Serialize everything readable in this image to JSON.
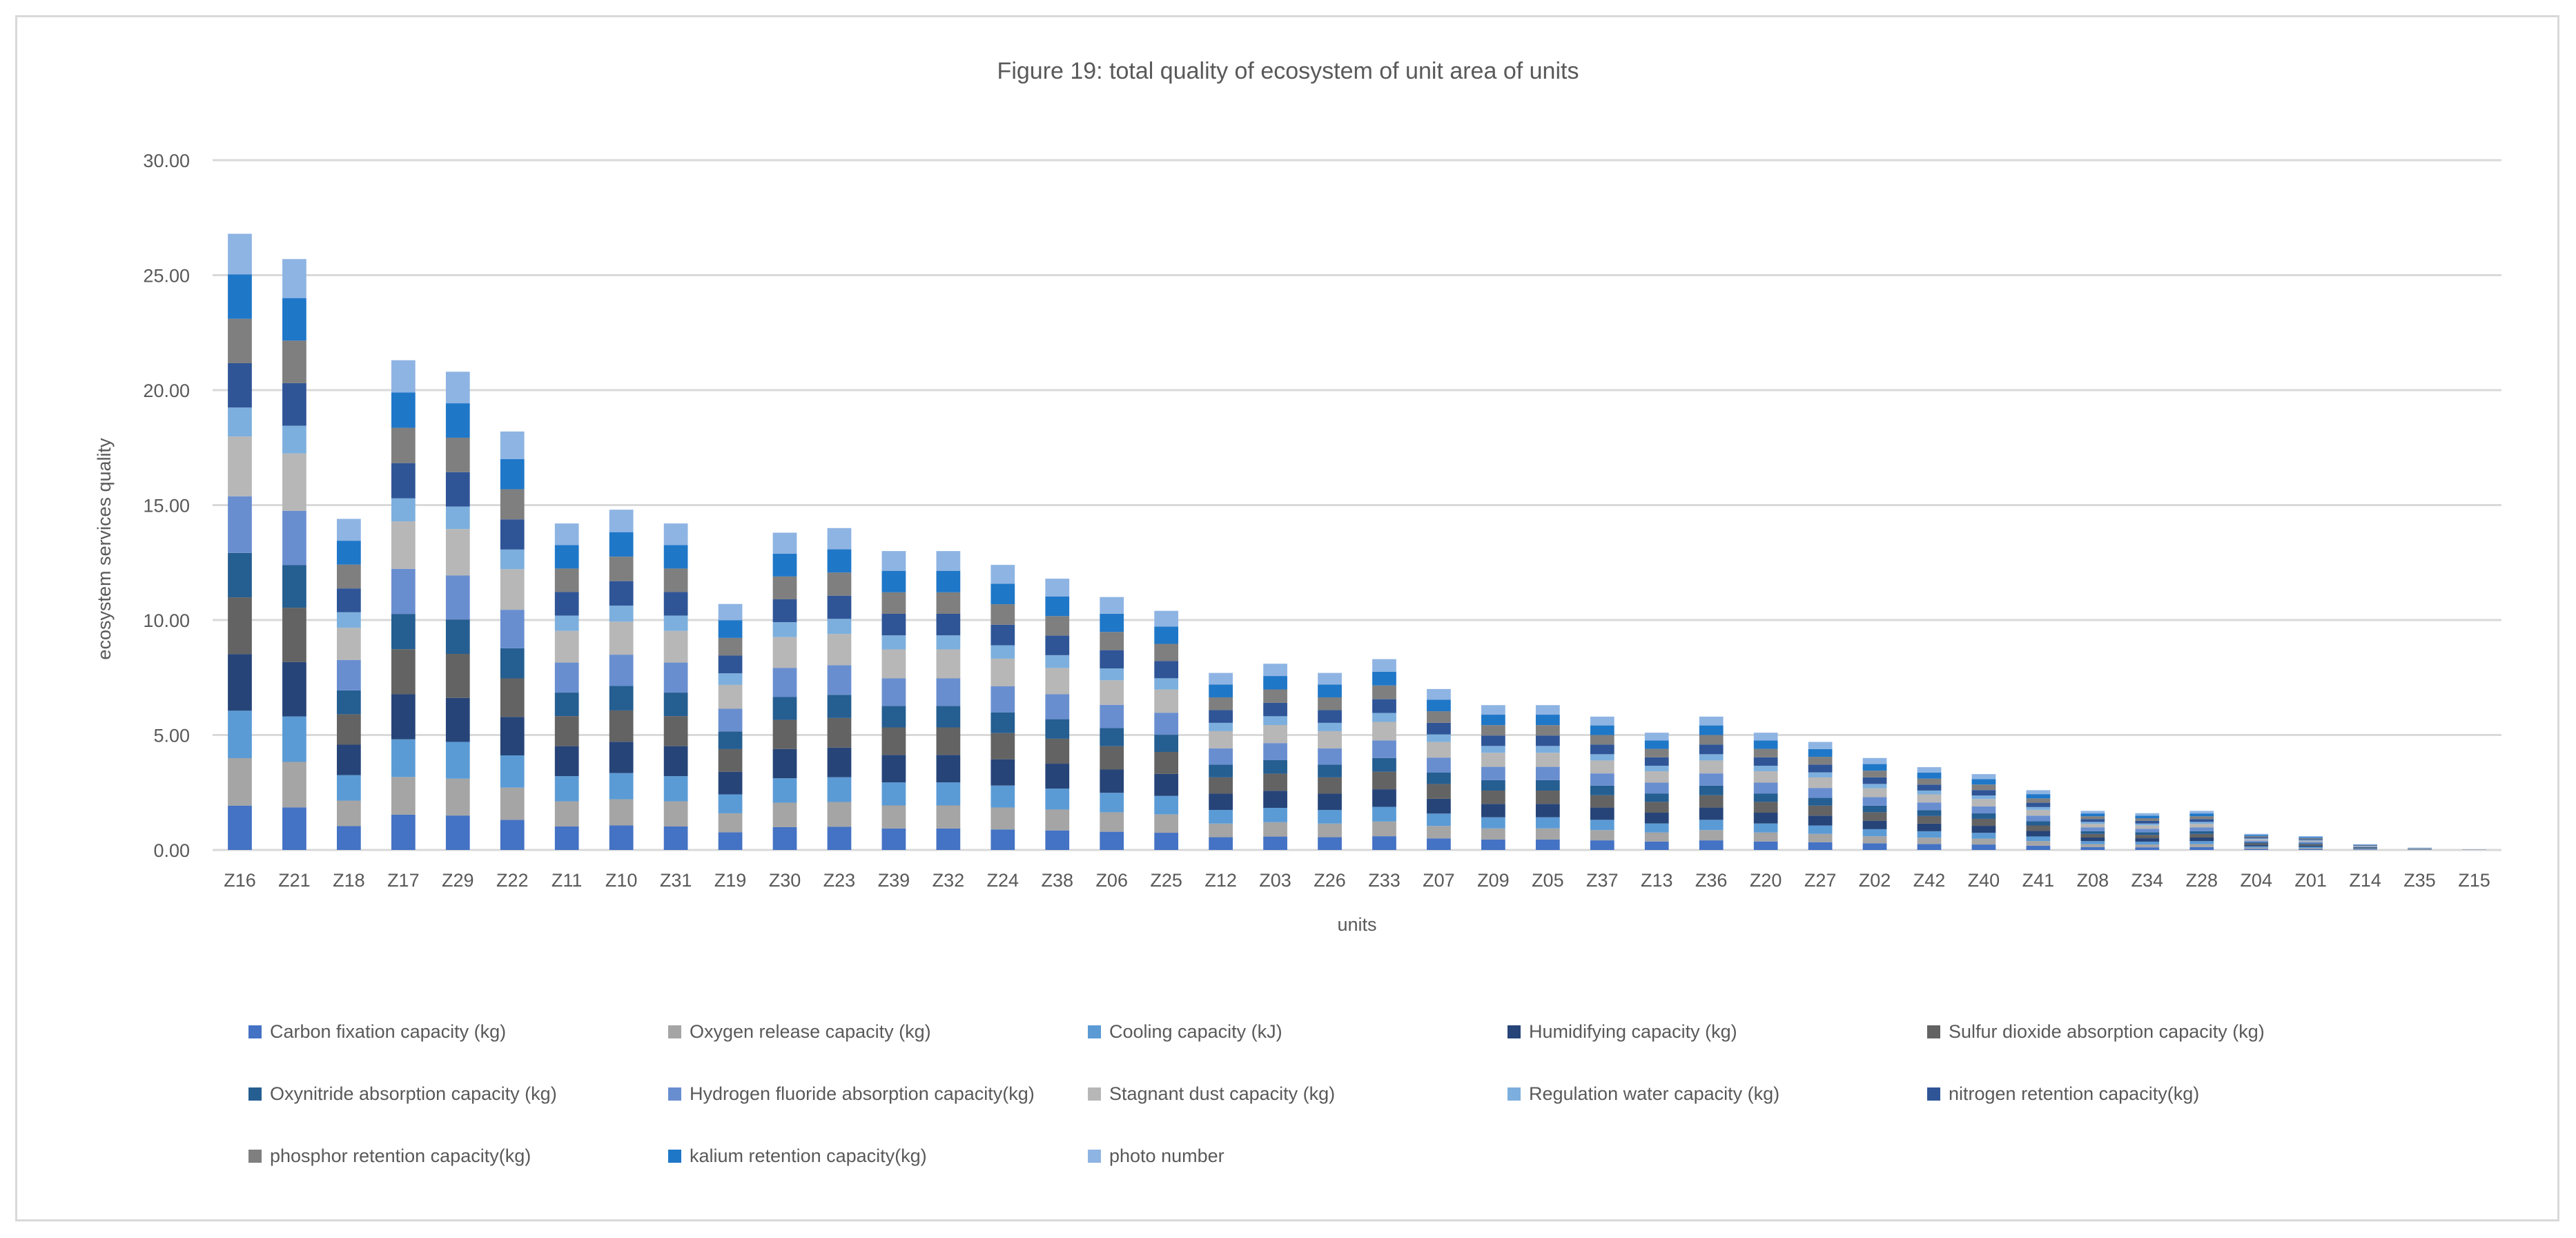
{
  "chart_data": {
    "type": "bar",
    "stacked": true,
    "title": "Figure 19: total quality of ecosystem of unit area of units",
    "xlabel": "units",
    "ylabel": "ecosystem services quality",
    "ylim": [
      0,
      30
    ],
    "yticks": [
      "0.00",
      "5.00",
      "10.00",
      "15.00",
      "20.00",
      "25.00",
      "30.00"
    ],
    "grid": true,
    "legend_position": "bottom",
    "categories": [
      "Z16",
      "Z21",
      "Z18",
      "Z17",
      "Z29",
      "Z22",
      "Z11",
      "Z10",
      "Z31",
      "Z19",
      "Z30",
      "Z23",
      "Z39",
      "Z32",
      "Z24",
      "Z38",
      "Z06",
      "Z25",
      "Z12",
      "Z03",
      "Z26",
      "Z33",
      "Z07",
      "Z09",
      "Z05",
      "Z37",
      "Z13",
      "Z36",
      "Z20",
      "Z27",
      "Z02",
      "Z42",
      "Z40",
      "Z41",
      "Z08",
      "Z34",
      "Z28",
      "Z04",
      "Z01",
      "Z14",
      "Z35",
      "Z15"
    ],
    "totals": [
      26.8,
      25.7,
      14.4,
      21.3,
      20.8,
      18.2,
      14.2,
      14.8,
      14.2,
      10.7,
      13.8,
      14.0,
      13.0,
      13.0,
      12.4,
      11.8,
      11.0,
      10.4,
      7.7,
      8.1,
      7.7,
      8.3,
      7.0,
      6.3,
      6.3,
      5.8,
      5.1,
      5.8,
      5.1,
      4.7,
      4.0,
      3.6,
      3.3,
      2.6,
      1.7,
      1.6,
      1.7,
      0.7,
      0.6,
      0.25,
      0.1,
      0.02
    ],
    "series": [
      {
        "name": "Carbon fixation capacity (kg)",
        "color": "#4472c4",
        "share": 0.072
      },
      {
        "name": "Oxygen release capacity (kg)",
        "color": "#a5a5a5",
        "share": 0.077
      },
      {
        "name": "Cooling capacity (kJ)",
        "color": "#5b9bd5",
        "share": 0.077
      },
      {
        "name": "Humidifying capacity (kg)",
        "color": "#264478",
        "share": 0.092
      },
      {
        "name": "Sulfur dioxide absorption capacity (kg)",
        "color": "#636363",
        "share": 0.092
      },
      {
        "name": "Oxynitride absorption capacity (kg)",
        "color": "#255e91",
        "share": 0.072
      },
      {
        "name": "Hydrogen fluoride absorption capacity(kg)",
        "color": "#698ed0",
        "share": 0.092
      },
      {
        "name": "Stagnant dust capacity (kg)",
        "color": "#b7b7b7",
        "share": 0.097
      },
      {
        "name": "Regulation water capacity (kg)",
        "color": "#7cafdd",
        "share": 0.047
      },
      {
        "name": "nitrogen retention capacity(kg)",
        "color": "#2f5597",
        "share": 0.072
      },
      {
        "name": "phosphor retention capacity(kg)",
        "color": "#7f7f7f",
        "share": 0.072
      },
      {
        "name": "kalium retention capacity(kg)",
        "color": "#1f77c8",
        "share": 0.072
      },
      {
        "name": "photo number",
        "color": "#8eb4e3",
        "share": 0.066
      }
    ]
  }
}
